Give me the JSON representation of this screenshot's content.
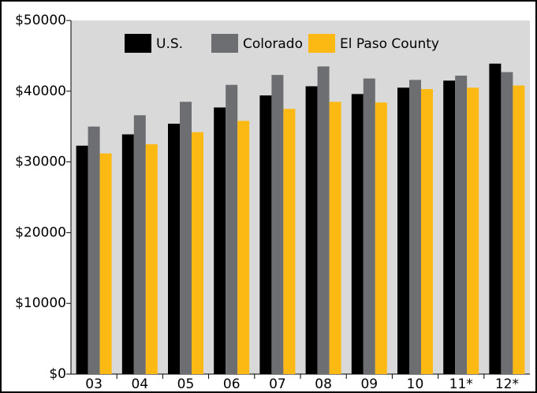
{
  "chart_data": {
    "type": "bar",
    "categories": [
      "03",
      "04",
      "05",
      "06",
      "07",
      "08",
      "09",
      "10",
      "11*",
      "12*"
    ],
    "series": [
      {
        "name": "U.S.",
        "color": "#000000",
        "values": [
          32300,
          33900,
          35400,
          37700,
          39400,
          40700,
          39600,
          40500,
          41500,
          43900
        ]
      },
      {
        "name": "Colorado",
        "color": "#6d6e71",
        "values": [
          35000,
          36600,
          38500,
          40900,
          42300,
          43500,
          41800,
          41600,
          42200,
          42700
        ]
      },
      {
        "name": "El Paso County",
        "color": "#fdb913",
        "values": [
          31200,
          32500,
          34200,
          35800,
          37500,
          38500,
          38400,
          40300,
          40500,
          40800
        ]
      }
    ],
    "ylim": [
      0,
      50000
    ],
    "yticks": [
      {
        "value": 0,
        "label": "$0"
      },
      {
        "value": 10000,
        "label": "$10000"
      },
      {
        "value": 20000,
        "label": "$20000"
      },
      {
        "value": 30000,
        "label": "$30000"
      },
      {
        "value": 40000,
        "label": "$40000"
      },
      {
        "value": 50000,
        "label": "$50000"
      }
    ],
    "legend": "top"
  }
}
